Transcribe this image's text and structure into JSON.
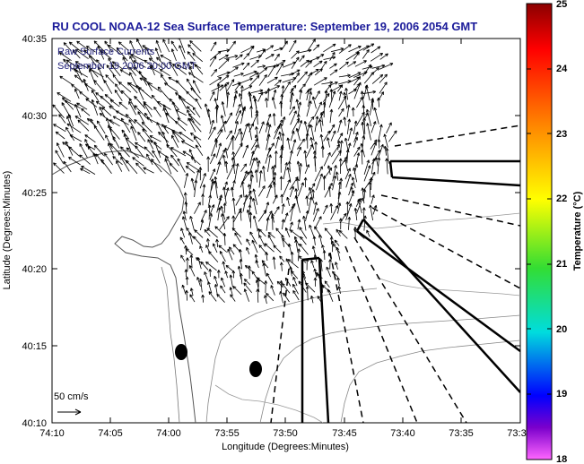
{
  "title": "RU COOL  NOAA-12  Sea Surface Temperature:  September 19, 2006 2054 GMT",
  "legend": {
    "line1": "Raw Surface Currents",
    "line2": "September 19 2006 20:00 GMT",
    "scale_label": "50 cm/s"
  },
  "axes": {
    "x_title": "Longitude (Degrees:Minutes)",
    "y_title": "Latitude (Degrees:Minutes)",
    "x_ticks": [
      "74:10",
      "74:05",
      "74:00",
      "73:55",
      "73:50",
      "73:45",
      "73:40",
      "73:35",
      "73:3"
    ],
    "y_ticks": [
      "40:35",
      "40:30",
      "40:25",
      "40:20",
      "40:15",
      "40:10"
    ]
  },
  "colorbar": {
    "title": "Temperature (°C)",
    "ticks": [
      "25",
      "24",
      "23",
      "22",
      "21",
      "20",
      "19",
      "18"
    ],
    "colors": [
      "#8b0000",
      "#ff0000",
      "#ff8800",
      "#ffff00",
      "#33dd33",
      "#00dddd",
      "#0000ff",
      "#7b00cc",
      "#ff66ff"
    ]
  }
}
